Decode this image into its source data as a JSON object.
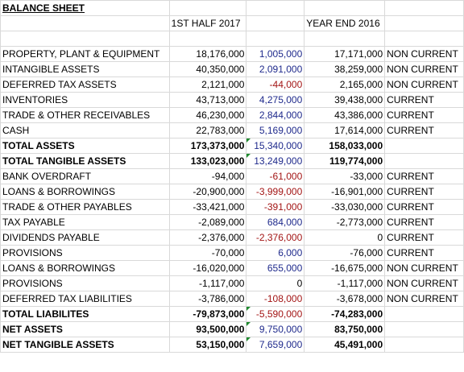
{
  "sheet": {
    "title": "BALANCE SHEET",
    "col_current": "1ST HALF 2017",
    "col_previous": "YEAR END 2016",
    "rows": [
      {
        "label": "PROPERTY, PLANT & EQUIPMENT",
        "current": "18,176,000",
        "change": "1,005,000",
        "change_color": "blue",
        "previous": "17,171,000",
        "class": "NON CURRENT",
        "bold": false
      },
      {
        "label": "INTANGIBLE ASSETS",
        "current": "40,350,000",
        "change": "2,091,000",
        "change_color": "blue",
        "previous": "38,259,000",
        "class": "NON CURRENT",
        "bold": false
      },
      {
        "label": "DEFERRED TAX ASSETS",
        "current": "2,121,000",
        "change": "-44,000",
        "change_color": "red",
        "previous": "2,165,000",
        "class": "NON CURRENT",
        "bold": false
      },
      {
        "label": "INVENTORIES",
        "current": "43,713,000",
        "change": "4,275,000",
        "change_color": "blue",
        "previous": "39,438,000",
        "class": "CURRENT",
        "bold": false
      },
      {
        "label": "TRADE & OTHER RECEIVABLES",
        "current": "46,230,000",
        "change": "2,844,000",
        "change_color": "blue",
        "previous": "43,386,000",
        "class": "CURRENT",
        "bold": false
      },
      {
        "label": "CASH",
        "current": "22,783,000",
        "change": "5,169,000",
        "change_color": "blue",
        "previous": "17,614,000",
        "class": "CURRENT",
        "bold": false
      },
      {
        "label": "TOTAL ASSETS",
        "current": "173,373,000",
        "change": "15,340,000",
        "change_color": "blue",
        "previous": "158,033,000",
        "class": "",
        "bold": true,
        "flag": true
      },
      {
        "label": "TOTAL TANGIBLE ASSETS",
        "current": "133,023,000",
        "change": "13,249,000",
        "change_color": "blue",
        "previous": "119,774,000",
        "class": "",
        "bold": true,
        "flag": true
      },
      {
        "label": "BANK OVERDRAFT",
        "current": "-94,000",
        "change": "-61,000",
        "change_color": "red",
        "previous": "-33,000",
        "class": "CURRENT",
        "bold": false
      },
      {
        "label": "LOANS & BORROWINGS",
        "current": "-20,900,000",
        "change": "-3,999,000",
        "change_color": "red",
        "previous": "-16,901,000",
        "class": "CURRENT",
        "bold": false
      },
      {
        "label": "TRADE & OTHER PAYABLES",
        "current": "-33,421,000",
        "change": "-391,000",
        "change_color": "red",
        "previous": "-33,030,000",
        "class": "CURRENT",
        "bold": false
      },
      {
        "label": "TAX PAYABLE",
        "current": "-2,089,000",
        "change": "684,000",
        "change_color": "blue",
        "previous": "-2,773,000",
        "class": "CURRENT",
        "bold": false
      },
      {
        "label": "DIVIDENDS PAYABLE",
        "current": "-2,376,000",
        "change": "-2,376,000",
        "change_color": "red",
        "previous": "0",
        "class": "CURRENT",
        "bold": false
      },
      {
        "label": "PROVISIONS",
        "current": "-70,000",
        "change": "6,000",
        "change_color": "blue",
        "previous": "-76,000",
        "class": "CURRENT",
        "bold": false
      },
      {
        "label": "LOANS & BORROWINGS",
        "current": "-16,020,000",
        "change": "655,000",
        "change_color": "blue",
        "previous": "-16,675,000",
        "class": "NON CURRENT",
        "bold": false
      },
      {
        "label": "PROVISIONS",
        "current": "-1,117,000",
        "change": "0",
        "change_color": "black",
        "previous": "-1,117,000",
        "class": "NON CURRENT",
        "bold": false
      },
      {
        "label": "DEFERRED TAX LIABILITIES",
        "current": "-3,786,000",
        "change": "-108,000",
        "change_color": "red",
        "previous": "-3,678,000",
        "class": "NON CURRENT",
        "bold": false
      },
      {
        "label": "TOTAL LIABILITES",
        "current": "-79,873,000",
        "change": "-5,590,000",
        "change_color": "red",
        "previous": "-74,283,000",
        "class": "",
        "bold": true,
        "flag": true
      },
      {
        "label": "NET ASSETS",
        "current": "93,500,000",
        "change": "9,750,000",
        "change_color": "blue",
        "previous": "83,750,000",
        "class": "",
        "bold": true,
        "flag": true
      },
      {
        "label": "NET TANGIBLE ASSETS",
        "current": "53,150,000",
        "change": "7,659,000",
        "change_color": "blue",
        "previous": "45,491,000",
        "class": "",
        "bold": true,
        "flag": true
      }
    ]
  }
}
